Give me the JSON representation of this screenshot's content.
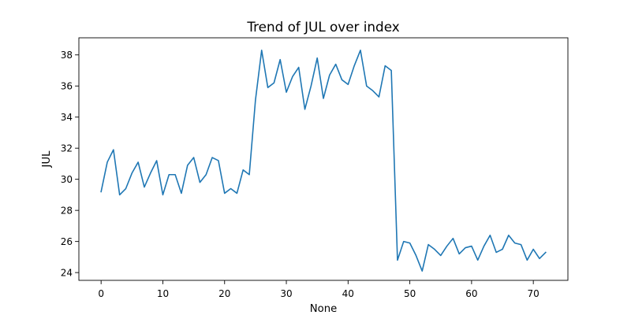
{
  "chart_data": {
    "type": "line",
    "title": "Trend of JUL over index",
    "xlabel": "None",
    "ylabel": "JUL",
    "xlim": [
      -3.6,
      75.6
    ],
    "ylim": [
      23.5,
      39.1
    ],
    "xticks": [
      0,
      10,
      20,
      30,
      40,
      50,
      60,
      70
    ],
    "yticks": [
      24,
      26,
      28,
      30,
      32,
      34,
      36,
      38
    ],
    "grid": false,
    "legend": "none",
    "series": [
      {
        "color": "#1f77b4",
        "x": [
          0,
          1,
          2,
          3,
          4,
          5,
          6,
          7,
          8,
          9,
          10,
          11,
          12,
          13,
          14,
          15,
          16,
          17,
          18,
          19,
          20,
          21,
          22,
          23,
          24,
          25,
          26,
          27,
          28,
          29,
          30,
          31,
          32,
          33,
          34,
          35,
          36,
          37,
          38,
          39,
          40,
          41,
          42,
          43,
          44,
          45,
          46,
          47,
          48,
          49,
          50,
          51,
          52,
          53,
          54,
          55,
          56,
          57,
          58,
          59,
          60,
          61,
          62,
          63,
          64,
          65,
          66,
          67,
          68,
          69,
          70,
          71,
          72
        ],
        "values": [
          29.2,
          31.1,
          31.9,
          29.0,
          29.4,
          30.4,
          31.1,
          29.5,
          30.4,
          31.2,
          29.0,
          30.3,
          30.3,
          29.1,
          30.9,
          31.4,
          29.8,
          30.3,
          31.4,
          31.2,
          29.1,
          29.4,
          29.1,
          30.6,
          30.3,
          35.1,
          38.3,
          35.9,
          36.2,
          37.7,
          35.6,
          36.6,
          37.2,
          34.5,
          36.0,
          37.8,
          35.2,
          36.7,
          37.4,
          36.4,
          36.1,
          37.3,
          38.3,
          36.0,
          35.7,
          35.3,
          37.3,
          37.0,
          24.8,
          26.0,
          25.9,
          25.1,
          24.1,
          25.8,
          25.5,
          25.1,
          25.7,
          26.2,
          25.2,
          25.6,
          25.7,
          24.8,
          25.7,
          26.4,
          25.3,
          25.5,
          26.4,
          25.9,
          25.8,
          24.8,
          25.5,
          24.9,
          25.3
        ]
      }
    ]
  }
}
